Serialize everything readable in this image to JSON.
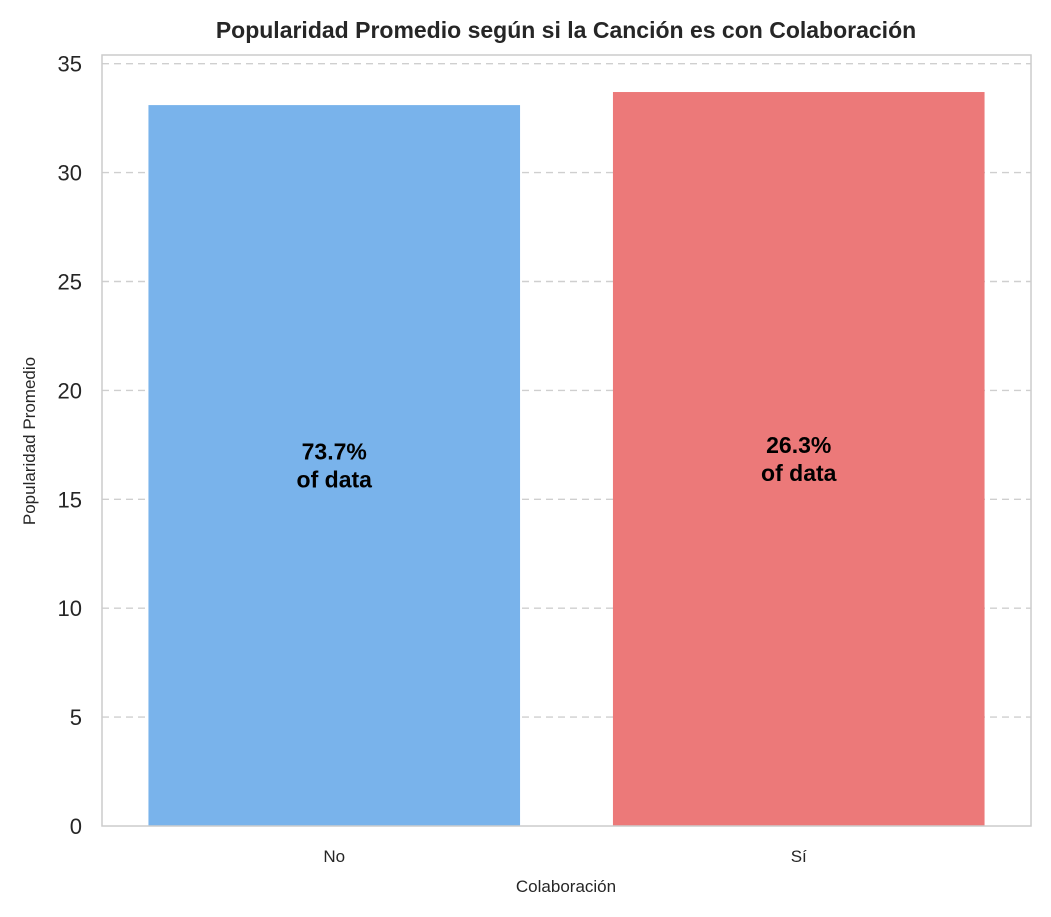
{
  "chart_data": {
    "type": "bar",
    "title": "Popularidad Promedio según si la Canción es con Colaboración",
    "xlabel": "Colaboración",
    "ylabel": "Popularidad Promedio",
    "categories": [
      "No",
      "Sí"
    ],
    "values": [
      33.1,
      33.7
    ],
    "colors": [
      "#79b3eb",
      "#ec7979"
    ],
    "bar_labels": [
      [
        "73.7%",
        "of data"
      ],
      [
        "26.3%",
        "of data"
      ]
    ],
    "ylim": [
      0,
      35.4
    ],
    "yticks": [
      0,
      5,
      10,
      15,
      20,
      25,
      30,
      35
    ],
    "grid": "y-dashed",
    "legend": "none"
  }
}
